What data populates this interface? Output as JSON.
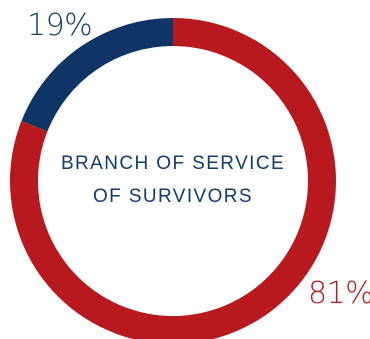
{
  "chart_data": {
    "type": "pie",
    "variant": "donut",
    "title_lines": [
      "BRANCH OF SERVICE",
      "OF SURVIVORS"
    ],
    "slices": [
      {
        "label": "19%",
        "value": 19,
        "color": "#0f3466"
      },
      {
        "label": "81%",
        "value": 81,
        "color": "#b7191f"
      }
    ],
    "title_color": "#123a73",
    "label_colors": {
      "small": "#123a73",
      "large": "#b7191f"
    }
  }
}
